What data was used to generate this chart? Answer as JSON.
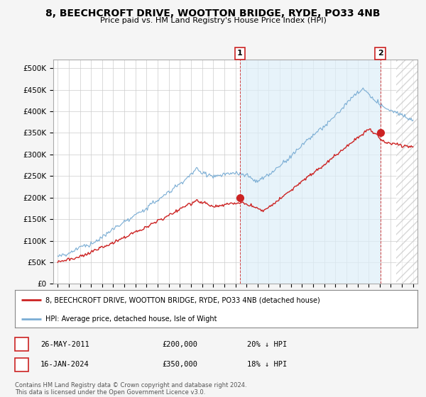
{
  "title": "8, BEECHCROFT DRIVE, WOOTTON BRIDGE, RYDE, PO33 4NB",
  "subtitle": "Price paid vs. HM Land Registry's House Price Index (HPI)",
  "hpi_color": "#7aadd4",
  "hpi_fill_color": "#ddeef8",
  "price_color": "#cc2222",
  "background_color": "#f5f5f5",
  "plot_bg_color": "#ffffff",
  "ann1_x": 2011.4,
  "ann1_y": 200000,
  "ann2_x": 2024.05,
  "ann2_y": 350000,
  "legend_line1": "8, BEECHCROFT DRIVE, WOOTTON BRIDGE, RYDE, PO33 4NB (detached house)",
  "legend_line2": "HPI: Average price, detached house, Isle of Wight",
  "table_row1": [
    "1",
    "26-MAY-2011",
    "£200,000",
    "20% ↓ HPI"
  ],
  "table_row2": [
    "2",
    "16-JAN-2024",
    "£350,000",
    "18% ↓ HPI"
  ],
  "footer": "Contains HM Land Registry data © Crown copyright and database right 2024.\nThis data is licensed under the Open Government Licence v3.0.",
  "ylim": [
    0,
    520000
  ],
  "yticks": [
    0,
    50000,
    100000,
    150000,
    200000,
    250000,
    300000,
    350000,
    400000,
    450000,
    500000
  ],
  "xlim_start": 1994.6,
  "xlim_end": 2027.4
}
